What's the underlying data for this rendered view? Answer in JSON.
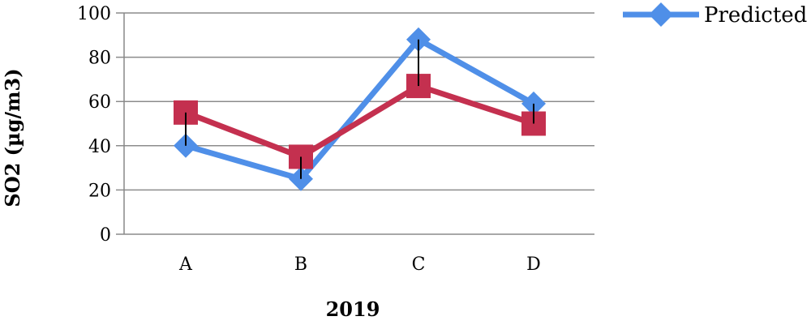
{
  "chart_data": {
    "type": "line",
    "categories": [
      "A",
      "B",
      "C",
      "D"
    ],
    "series": [
      {
        "name": "Predicted",
        "values": [
          40,
          25,
          88,
          59
        ],
        "color": "#4F8FE8",
        "marker": "diamond"
      },
      {
        "name": "",
        "values": [
          55,
          35,
          67,
          50
        ],
        "color": "#C4304F",
        "marker": "square"
      }
    ],
    "error_bars": [
      {
        "category": "A",
        "low": 40,
        "high": 55
      },
      {
        "category": "B",
        "low": 25,
        "high": 35
      },
      {
        "category": "C",
        "low": 67,
        "high": 88
      },
      {
        "category": "D",
        "low": 50,
        "high": 59
      }
    ],
    "xlabel": "2019",
    "ylabel": "SO2 (µg/m3)",
    "ylim": [
      0,
      100
    ],
    "yticks": [
      0,
      20,
      40,
      60,
      80,
      100
    ],
    "grid": true,
    "legend_position": "top-right"
  }
}
